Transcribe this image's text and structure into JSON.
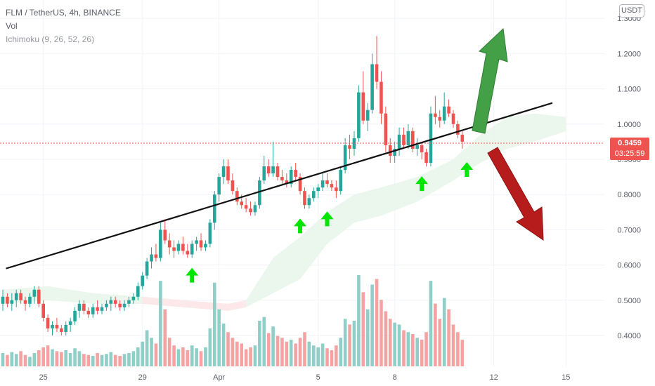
{
  "header": {
    "symbol_line": "FLM / TetherUS, 4h, BINANCE",
    "vol_label": "Vol",
    "ichimoku_label": "Ichimoku (9, 26, 52, 26)",
    "currency_button": "USDT"
  },
  "last_price": {
    "value": "0.9459",
    "countdown": "03:25:59"
  },
  "colors": {
    "up": "#26a69a",
    "down": "#ef5350",
    "vol_up": "#8fcfc8",
    "vol_down": "#f4a3a2",
    "cloud_green": "#e8f5e9",
    "cloud_red": "#fbe4e4",
    "trendline": "#111111",
    "arrow_green": "#00e600",
    "arrow_up": "#43a047",
    "arrow_down": "#b71c1c"
  },
  "chart_data": {
    "type": "candlestick",
    "x_ticks": [
      "25",
      "29",
      "Apr",
      "5",
      "8",
      "12",
      "15"
    ],
    "y_ticks": [
      "0.4000",
      "0.5000",
      "0.6000",
      "0.7000",
      "0.8000",
      "0.9000",
      "1.0000",
      "1.1000",
      "1.2000",
      "1.3000"
    ],
    "ylim": [
      0.36,
      1.31
    ],
    "grid": true,
    "candles": [
      [
        0.49,
        0.53,
        0.47,
        0.51
      ],
      [
        0.51,
        0.52,
        0.48,
        0.49
      ],
      [
        0.49,
        0.52,
        0.47,
        0.5
      ],
      [
        0.5,
        0.53,
        0.48,
        0.52
      ],
      [
        0.52,
        0.53,
        0.49,
        0.5
      ],
      [
        0.5,
        0.51,
        0.47,
        0.49
      ],
      [
        0.49,
        0.52,
        0.48,
        0.51
      ],
      [
        0.51,
        0.54,
        0.49,
        0.53
      ],
      [
        0.53,
        0.54,
        0.48,
        0.49
      ],
      [
        0.49,
        0.5,
        0.44,
        0.45
      ],
      [
        0.45,
        0.46,
        0.41,
        0.42
      ],
      [
        0.42,
        0.44,
        0.4,
        0.43
      ],
      [
        0.43,
        0.45,
        0.41,
        0.42
      ],
      [
        0.42,
        0.43,
        0.4,
        0.41
      ],
      [
        0.41,
        0.44,
        0.4,
        0.43
      ],
      [
        0.43,
        0.45,
        0.41,
        0.44
      ],
      [
        0.44,
        0.48,
        0.43,
        0.47
      ],
      [
        0.47,
        0.5,
        0.45,
        0.49
      ],
      [
        0.49,
        0.5,
        0.46,
        0.47
      ],
      [
        0.47,
        0.48,
        0.45,
        0.46
      ],
      [
        0.46,
        0.49,
        0.45,
        0.48
      ],
      [
        0.48,
        0.5,
        0.46,
        0.47
      ],
      [
        0.47,
        0.49,
        0.46,
        0.48
      ],
      [
        0.48,
        0.5,
        0.47,
        0.49
      ],
      [
        0.49,
        0.51,
        0.47,
        0.5
      ],
      [
        0.5,
        0.51,
        0.48,
        0.49
      ],
      [
        0.49,
        0.5,
        0.47,
        0.48
      ],
      [
        0.48,
        0.5,
        0.47,
        0.49
      ],
      [
        0.49,
        0.51,
        0.48,
        0.5
      ],
      [
        0.5,
        0.52,
        0.49,
        0.51
      ],
      [
        0.51,
        0.55,
        0.5,
        0.54
      ],
      [
        0.54,
        0.58,
        0.53,
        0.57
      ],
      [
        0.57,
        0.62,
        0.56,
        0.61
      ],
      [
        0.61,
        0.65,
        0.59,
        0.63
      ],
      [
        0.63,
        0.66,
        0.61,
        0.62
      ],
      [
        0.62,
        0.72,
        0.61,
        0.7
      ],
      [
        0.7,
        0.73,
        0.66,
        0.67
      ],
      [
        0.67,
        0.69,
        0.63,
        0.65
      ],
      [
        0.65,
        0.67,
        0.62,
        0.64
      ],
      [
        0.64,
        0.67,
        0.63,
        0.66
      ],
      [
        0.66,
        0.68,
        0.63,
        0.64
      ],
      [
        0.64,
        0.66,
        0.62,
        0.63
      ],
      [
        0.63,
        0.67,
        0.62,
        0.66
      ],
      [
        0.66,
        0.68,
        0.64,
        0.67
      ],
      [
        0.67,
        0.69,
        0.64,
        0.65
      ],
      [
        0.65,
        0.67,
        0.64,
        0.66
      ],
      [
        0.66,
        0.73,
        0.65,
        0.72
      ],
      [
        0.72,
        0.81,
        0.7,
        0.8
      ],
      [
        0.8,
        0.86,
        0.78,
        0.85
      ],
      [
        0.85,
        0.9,
        0.83,
        0.88
      ],
      [
        0.88,
        0.9,
        0.83,
        0.84
      ],
      [
        0.84,
        0.86,
        0.8,
        0.81
      ],
      [
        0.81,
        0.82,
        0.77,
        0.78
      ],
      [
        0.78,
        0.8,
        0.76,
        0.77
      ],
      [
        0.77,
        0.79,
        0.75,
        0.76
      ],
      [
        0.76,
        0.78,
        0.74,
        0.75
      ],
      [
        0.75,
        0.78,
        0.74,
        0.77
      ],
      [
        0.77,
        0.85,
        0.76,
        0.84
      ],
      [
        0.84,
        0.91,
        0.83,
        0.88
      ],
      [
        0.88,
        0.9,
        0.85,
        0.86
      ],
      [
        0.86,
        0.95,
        0.85,
        0.88
      ],
      [
        0.88,
        0.89,
        0.84,
        0.85
      ],
      [
        0.85,
        0.87,
        0.83,
        0.84
      ],
      [
        0.84,
        0.86,
        0.82,
        0.83
      ],
      [
        0.83,
        0.88,
        0.82,
        0.87
      ],
      [
        0.87,
        0.89,
        0.84,
        0.85
      ],
      [
        0.85,
        0.86,
        0.8,
        0.81
      ],
      [
        0.81,
        0.82,
        0.76,
        0.77
      ],
      [
        0.77,
        0.8,
        0.76,
        0.79
      ],
      [
        0.79,
        0.82,
        0.78,
        0.81
      ],
      [
        0.81,
        0.83,
        0.79,
        0.82
      ],
      [
        0.82,
        0.86,
        0.81,
        0.84
      ],
      [
        0.84,
        0.86,
        0.82,
        0.83
      ],
      [
        0.83,
        0.84,
        0.81,
        0.82
      ],
      [
        0.82,
        0.84,
        0.79,
        0.81
      ],
      [
        0.81,
        0.88,
        0.8,
        0.87
      ],
      [
        0.87,
        0.96,
        0.86,
        0.94
      ],
      [
        0.94,
        0.97,
        0.9,
        0.93
      ],
      [
        0.93,
        0.98,
        0.91,
        0.96
      ],
      [
        0.96,
        1.11,
        0.95,
        1.09
      ],
      [
        1.09,
        1.15,
        1.0,
        1.01
      ],
      [
        1.01,
        1.06,
        0.98,
        1.04
      ],
      [
        1.04,
        1.2,
        1.03,
        1.17
      ],
      [
        1.17,
        1.25,
        1.1,
        1.12
      ],
      [
        1.12,
        1.15,
        1.0,
        1.03
      ],
      [
        1.03,
        1.05,
        0.92,
        0.94
      ],
      [
        0.94,
        0.96,
        0.89,
        0.91
      ],
      [
        0.91,
        0.95,
        0.89,
        0.93
      ],
      [
        0.93,
        0.99,
        0.91,
        0.97
      ],
      [
        0.97,
        0.99,
        0.93,
        0.94
      ],
      [
        0.94,
        1.0,
        0.93,
        0.98
      ],
      [
        0.98,
        0.99,
        0.92,
        0.93
      ],
      [
        0.93,
        0.96,
        0.91,
        0.94
      ],
      [
        0.94,
        0.95,
        0.9,
        0.92
      ],
      [
        0.92,
        0.93,
        0.88,
        0.89
      ],
      [
        0.89,
        1.05,
        0.88,
        1.03
      ],
      [
        1.03,
        1.08,
        1.0,
        1.02
      ],
      [
        1.02,
        1.04,
        0.99,
        1.01
      ],
      [
        1.01,
        1.09,
        1.0,
        1.05
      ],
      [
        1.05,
        1.07,
        1.02,
        1.03
      ],
      [
        1.03,
        1.04,
        0.99,
        1.0
      ],
      [
        1.0,
        1.01,
        0.96,
        0.97
      ],
      [
        0.97,
        0.98,
        0.93,
        0.95
      ]
    ],
    "volume": [
      14,
      12,
      15,
      13,
      16,
      12,
      10,
      14,
      17,
      20,
      22,
      18,
      16,
      15,
      17,
      14,
      19,
      16,
      13,
      12,
      11,
      14,
      12,
      13,
      15,
      12,
      11,
      13,
      14,
      16,
      20,
      26,
      38,
      30,
      24,
      90,
      60,
      30,
      22,
      18,
      20,
      17,
      22,
      19,
      16,
      20,
      40,
      88,
      60,
      45,
      36,
      30,
      26,
      24,
      18,
      20,
      22,
      48,
      52,
      35,
      42,
      32,
      30,
      26,
      28,
      24,
      30,
      36,
      26,
      22,
      20,
      24,
      19,
      17,
      22,
      30,
      50,
      44,
      48,
      96,
      78,
      60,
      86,
      92,
      70,
      58,
      50,
      46,
      44,
      38,
      36,
      34,
      30,
      28,
      36,
      90,
      66,
      50,
      72,
      60,
      44,
      36,
      28
    ],
    "trendline": [
      [
        0.59,
        0.7
      ],
      [
        1.06,
        122
      ]
    ],
    "annotations": [
      "support-arrows",
      "bullish-arrow",
      "bearish-arrow"
    ]
  }
}
